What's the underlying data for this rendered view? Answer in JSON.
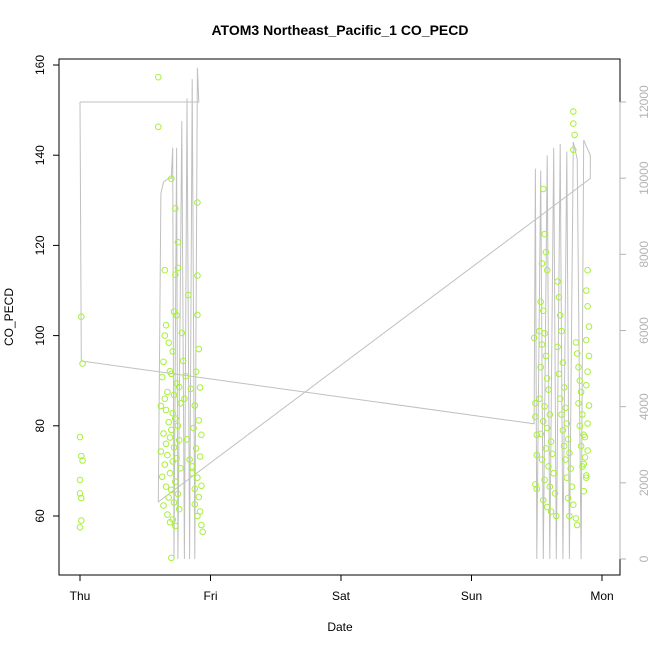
{
  "chart_data": {
    "type": "scatter",
    "title": "ATOM3 Northeast_Pacific_1 CO_PECD",
    "xlabel": "Date",
    "ylabel": "CO_PECD",
    "x_tick_labels": [
      "Thu",
      "Fri",
      "Sat",
      "Sun",
      "Mon"
    ],
    "xlim_days": [
      0.0,
      4.13
    ],
    "ylim": [
      47,
      162
    ],
    "yticks": [
      60,
      80,
      100,
      120,
      140,
      160
    ],
    "y2lim": [
      -200,
      12900
    ],
    "y2ticks": [
      0,
      2000,
      4000,
      6000,
      8000,
      10000,
      12000
    ],
    "grid": false,
    "legend": "none",
    "colors": {
      "points": "#a8f03a",
      "secondary_line": "#c0c0c0",
      "secondary_axis": "#b3b3b3"
    },
    "series": [
      {
        "kind": "points",
        "axis": "left",
        "points": [
          [
            0.01,
            104.2
          ],
          [
            0.02,
            93.8
          ],
          [
            0.0,
            77.5
          ],
          [
            0.01,
            73.3
          ],
          [
            0.02,
            72.3
          ],
          [
            0.0,
            68.0
          ],
          [
            0.0,
            65.0
          ],
          [
            0.01,
            64.0
          ],
          [
            0.01,
            59.0
          ],
          [
            0.0,
            57.5
          ],
          [
            0.6,
            157.3
          ],
          [
            0.6,
            146.3
          ],
          [
            0.65,
            114.5
          ],
          [
            0.7,
            134.8
          ],
          [
            0.73,
            128.2
          ],
          [
            0.75,
            120.7
          ],
          [
            0.75,
            115.0
          ],
          [
            0.73,
            113.5
          ],
          [
            0.72,
            105.3
          ],
          [
            0.74,
            104.5
          ],
          [
            0.66,
            102.3
          ],
          [
            0.65,
            100.0
          ],
          [
            0.68,
            98.4
          ],
          [
            0.71,
            96.5
          ],
          [
            0.64,
            94.2
          ],
          [
            0.69,
            92.1
          ],
          [
            0.7,
            91.5
          ],
          [
            0.63,
            90.8
          ],
          [
            0.74,
            89.4
          ],
          [
            0.76,
            88.6
          ],
          [
            0.67,
            87.5
          ],
          [
            0.72,
            86.8
          ],
          [
            0.65,
            86.0
          ],
          [
            0.77,
            85.0
          ],
          [
            0.62,
            84.4
          ],
          [
            0.66,
            83.5
          ],
          [
            0.71,
            82.8
          ],
          [
            0.73,
            81.6
          ],
          [
            0.68,
            80.8
          ],
          [
            0.75,
            80.0
          ],
          [
            0.7,
            79.1
          ],
          [
            0.64,
            78.3
          ],
          [
            0.69,
            77.4
          ],
          [
            0.76,
            76.8
          ],
          [
            0.66,
            76.0
          ],
          [
            0.72,
            75.2
          ],
          [
            0.62,
            74.3
          ],
          [
            0.67,
            73.5
          ],
          [
            0.74,
            72.8
          ],
          [
            0.71,
            72.1
          ],
          [
            0.65,
            71.4
          ],
          [
            0.77,
            70.6
          ],
          [
            0.69,
            69.5
          ],
          [
            0.63,
            68.7
          ],
          [
            0.73,
            67.6
          ],
          [
            0.66,
            66.5
          ],
          [
            0.7,
            65.8
          ],
          [
            0.75,
            64.9
          ],
          [
            0.68,
            64.1
          ],
          [
            0.72,
            63.0
          ],
          [
            0.64,
            62.3
          ],
          [
            0.76,
            61.5
          ],
          [
            0.67,
            60.3
          ],
          [
            0.71,
            59.2
          ],
          [
            0.69,
            58.6
          ],
          [
            0.73,
            57.8
          ],
          [
            0.7,
            50.7
          ],
          [
            0.78,
            100.6
          ],
          [
            0.79,
            94.4
          ],
          [
            0.8,
            86.0
          ],
          [
            0.82,
            77.0
          ],
          [
            0.84,
            72.5
          ],
          [
            0.86,
            69.5
          ],
          [
            0.88,
            66.0
          ],
          [
            0.83,
            109.0
          ],
          [
            0.9,
            129.5
          ],
          [
            0.9,
            113.3
          ],
          [
            0.9,
            104.6
          ],
          [
            0.91,
            97.0
          ],
          [
            0.89,
            92.0
          ],
          [
            0.92,
            88.5
          ],
          [
            0.88,
            84.5
          ],
          [
            0.91,
            81.2
          ],
          [
            0.87,
            79.5
          ],
          [
            0.93,
            78.0
          ],
          [
            0.89,
            75.0
          ],
          [
            0.92,
            73.2
          ],
          [
            0.86,
            71.0
          ],
          [
            0.9,
            68.5
          ],
          [
            0.93,
            66.7
          ],
          [
            0.91,
            64.2
          ],
          [
            0.88,
            62.6
          ],
          [
            0.92,
            61.0
          ],
          [
            0.9,
            60.0
          ],
          [
            0.93,
            58.0
          ],
          [
            0.94,
            56.5
          ],
          [
            0.85,
            88.2
          ],
          [
            0.81,
            91.0
          ],
          [
            3.48,
            99.5
          ],
          [
            3.49,
            85.0
          ],
          [
            3.49,
            82.0
          ],
          [
            3.5,
            78.0
          ],
          [
            3.5,
            73.5
          ],
          [
            3.49,
            67.0
          ],
          [
            3.5,
            66.0
          ],
          [
            3.52,
            101.0
          ],
          [
            3.53,
            107.5
          ],
          [
            3.54,
            116.0
          ],
          [
            3.55,
            132.5
          ],
          [
            3.56,
            122.5
          ],
          [
            3.57,
            118.5
          ],
          [
            3.58,
            114.5
          ],
          [
            3.55,
            105.5
          ],
          [
            3.56,
            100.5
          ],
          [
            3.54,
            98.0
          ],
          [
            3.57,
            95.5
          ],
          [
            3.53,
            93.0
          ],
          [
            3.58,
            90.5
          ],
          [
            3.59,
            88.0
          ],
          [
            3.52,
            86.0
          ],
          [
            3.56,
            84.3
          ],
          [
            3.6,
            82.5
          ],
          [
            3.55,
            81.0
          ],
          [
            3.58,
            79.5
          ],
          [
            3.53,
            78.2
          ],
          [
            3.61,
            76.5
          ],
          [
            3.57,
            75.0
          ],
          [
            3.62,
            73.8
          ],
          [
            3.54,
            72.5
          ],
          [
            3.59,
            71.0
          ],
          [
            3.63,
            69.5
          ],
          [
            3.56,
            68.0
          ],
          [
            3.6,
            66.5
          ],
          [
            3.64,
            65.0
          ],
          [
            3.55,
            63.5
          ],
          [
            3.58,
            62.0
          ],
          [
            3.61,
            61.0
          ],
          [
            3.65,
            60.0
          ],
          [
            3.66,
            112.0
          ],
          [
            3.67,
            108.5
          ],
          [
            3.68,
            104.5
          ],
          [
            3.69,
            101.0
          ],
          [
            3.66,
            97.5
          ],
          [
            3.7,
            94.0
          ],
          [
            3.67,
            91.5
          ],
          [
            3.71,
            88.5
          ],
          [
            3.68,
            86.0
          ],
          [
            3.72,
            84.0
          ],
          [
            3.69,
            82.5
          ],
          [
            3.73,
            80.5
          ],
          [
            3.7,
            79.0
          ],
          [
            3.74,
            77.0
          ],
          [
            3.71,
            75.5
          ],
          [
            3.75,
            74.0
          ],
          [
            3.72,
            72.5
          ],
          [
            3.76,
            70.5
          ],
          [
            3.73,
            68.5
          ],
          [
            3.77,
            66.5
          ],
          [
            3.74,
            64.0
          ],
          [
            3.78,
            62.5
          ],
          [
            3.75,
            60.0
          ],
          [
            3.78,
            149.7
          ],
          [
            3.78,
            147.0
          ],
          [
            3.79,
            144.5
          ],
          [
            3.78,
            141.2
          ],
          [
            3.8,
            98.5
          ],
          [
            3.81,
            96.0
          ],
          [
            3.82,
            93.0
          ],
          [
            3.83,
            90.0
          ],
          [
            3.84,
            87.5
          ],
          [
            3.82,
            85.0
          ],
          [
            3.85,
            82.5
          ],
          [
            3.83,
            80.0
          ],
          [
            3.86,
            78.0
          ],
          [
            3.84,
            75.5
          ],
          [
            3.87,
            73.0
          ],
          [
            3.85,
            71.0
          ],
          [
            3.88,
            69.0
          ],
          [
            3.86,
            65.5
          ],
          [
            3.8,
            59.5
          ],
          [
            3.81,
            58.0
          ],
          [
            3.89,
            114.5
          ],
          [
            3.88,
            110.0
          ],
          [
            3.89,
            106.5
          ],
          [
            3.9,
            102.0
          ],
          [
            3.88,
            99.0
          ],
          [
            3.9,
            95.5
          ],
          [
            3.89,
            92.0
          ],
          [
            3.88,
            89.0
          ],
          [
            3.9,
            84.5
          ],
          [
            3.89,
            80.5
          ],
          [
            3.87,
            77.5
          ],
          [
            3.89,
            74.5
          ],
          [
            3.86,
            71.5
          ],
          [
            3.88,
            68.5
          ]
        ]
      },
      {
        "kind": "line",
        "axis": "right",
        "points": [
          [
            0.0,
            12000
          ],
          [
            0.01,
            5200
          ],
          [
            3.48,
            3550
          ],
          [
            3.49,
            10250
          ],
          [
            3.5,
            0
          ],
          [
            3.53,
            10200
          ],
          [
            3.55,
            0
          ],
          [
            3.58,
            10600
          ],
          [
            3.6,
            0
          ],
          [
            3.63,
            10800
          ],
          [
            3.65,
            0
          ],
          [
            3.68,
            10900
          ],
          [
            3.7,
            0
          ],
          [
            3.73,
            10700
          ],
          [
            3.75,
            0
          ],
          [
            3.78,
            10950
          ],
          [
            3.81,
            10500
          ],
          [
            3.84,
            0
          ],
          [
            3.86,
            11000
          ],
          [
            3.91,
            10600
          ],
          [
            3.91,
            10600
          ],
          [
            3.91,
            9990
          ],
          [
            0.6,
            1500
          ],
          [
            0.62,
            9600
          ],
          [
            0.64,
            9900
          ],
          [
            0.68,
            10000
          ],
          [
            0.7,
            10000
          ],
          [
            0.71,
            10800
          ],
          [
            0.72,
            0
          ],
          [
            0.74,
            10800
          ],
          [
            0.75,
            0
          ],
          [
            0.78,
            11500
          ],
          [
            0.8,
            0
          ],
          [
            0.82,
            12100
          ],
          [
            0.84,
            0
          ],
          [
            0.86,
            12600
          ],
          [
            0.88,
            0
          ],
          [
            0.9,
            12900
          ],
          [
            0.91,
            12000
          ],
          [
            0.0,
            12000
          ]
        ]
      }
    ]
  }
}
